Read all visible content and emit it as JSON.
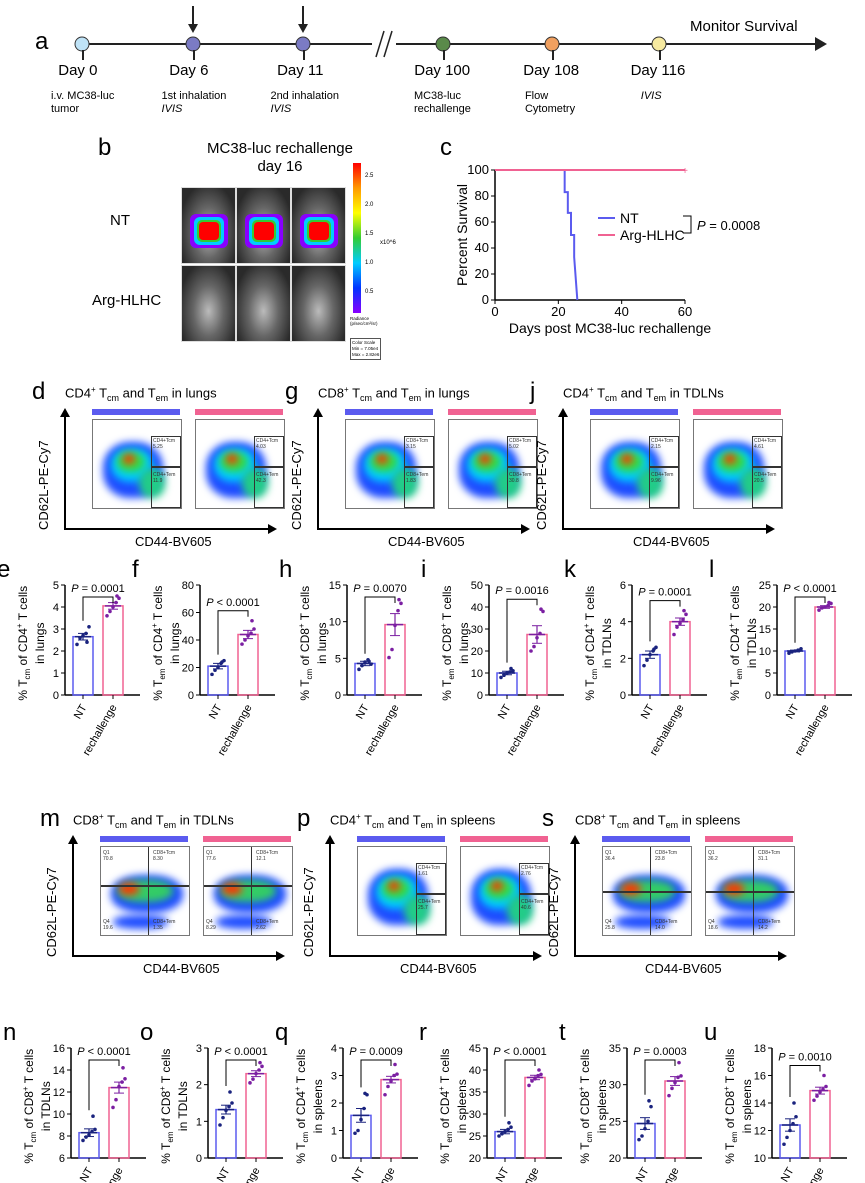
{
  "colors": {
    "nt": "#5b5bef",
    "arg": "#f06292",
    "nt_dot": "#1a237e",
    "arg_dot": "#7b1fa2"
  },
  "panel_letters": {
    "a": "a",
    "b": "b",
    "c": "c",
    "d": "d",
    "e": "e",
    "f": "f",
    "g": "g",
    "h": "h",
    "i": "i",
    "j": "j",
    "k": "k",
    "l": "l",
    "m": "m",
    "n": "n",
    "o": "o",
    "p": "p",
    "q": "q",
    "r": "r",
    "s": "s",
    "t": "t",
    "u": "u"
  },
  "timeline": {
    "end_label": "Monitor Survival",
    "events": [
      {
        "day": "Day 0",
        "desc1": "i.v. MC38-luc",
        "desc2": "tumor",
        "color": "#bfe3f7",
        "arrow": false
      },
      {
        "day": "Day 6",
        "desc1": "1st inhalation",
        "desc2": "IVIS",
        "color": "#7b7bc4",
        "arrow": true
      },
      {
        "day": "Day 11",
        "desc1": "2nd inhalation",
        "desc2": "IVIS",
        "color": "#7b7bc4",
        "arrow": true
      },
      {
        "day": "Day 100",
        "desc1": "MC38-luc",
        "desc2": "rechallenge",
        "color": "#5a8a4a",
        "arrow": false
      },
      {
        "day": "Day 108",
        "desc1": "Flow",
        "desc2": "Cytometry",
        "color": "#f0a060",
        "arrow": false
      },
      {
        "day": "Day 116",
        "desc1": "IVIS",
        "desc2": "",
        "color": "#f7eaa0",
        "arrow": false
      }
    ]
  },
  "ivis": {
    "title1": "MC38-luc rechallenge",
    "title2": "day 16",
    "row_nt": "NT",
    "row_arg": "Arg-HLHC",
    "scale_ticks": [
      "2.5",
      "2.0",
      "1.5",
      "1.0",
      "0.5"
    ],
    "scale_unit": "x10^6",
    "radiance_label": "Radiance (p/sec/cm²/sr)",
    "color_scale": "Color Scale",
    "min": "Min = 7.05e4",
    "max": "Max = 2.82e6"
  },
  "chart_data": [
    {
      "id": "c",
      "type": "line",
      "xlabel": "Days post MC38-luc rechallenge",
      "ylabel": "Percent Survival",
      "xlim": [
        0,
        60
      ],
      "ylim": [
        0,
        100
      ],
      "xticks": [
        0,
        20,
        40,
        60
      ],
      "yticks": [
        0,
        20,
        40,
        60,
        80,
        100
      ],
      "annotation": "P = 0.0008",
      "series": [
        {
          "name": "NT",
          "x": [
            0,
            22,
            22,
            23,
            23,
            24,
            24,
            25,
            25,
            26
          ],
          "y": [
            100,
            100,
            83,
            83,
            67,
            67,
            50,
            50,
            33,
            0
          ]
        },
        {
          "name": "Arg-HLHC",
          "x": [
            0,
            60
          ],
          "y": [
            100,
            100
          ]
        }
      ]
    },
    {
      "id": "e",
      "type": "bar",
      "cell": "CD4",
      "sub": "cm",
      "tissue": "in lungs",
      "p": "P = 0.0001",
      "ylim": [
        0,
        5
      ],
      "yticks": [
        0,
        1,
        2,
        3,
        4,
        5
      ],
      "categories": [
        "NT",
        "rechallenge"
      ],
      "values": [
        2.65,
        4.05
      ],
      "sem": [
        0.15,
        0.15
      ],
      "points": [
        [
          2.3,
          2.6,
          2.7,
          2.8,
          3.1,
          2.4
        ],
        [
          3.6,
          3.8,
          4.0,
          4.2,
          4.4,
          4.5
        ]
      ]
    },
    {
      "id": "f",
      "type": "bar",
      "cell": "CD4",
      "sub": "em",
      "tissue": "in lungs",
      "p": "P < 0.0001",
      "ylim": [
        0,
        80
      ],
      "yticks": [
        0,
        20,
        40,
        60,
        80
      ],
      "categories": [
        "NT",
        "rechallenge"
      ],
      "values": [
        21,
        44
      ],
      "sem": [
        2,
        3
      ],
      "points": [
        [
          15,
          18,
          20,
          23,
          25,
          24
        ],
        [
          37,
          40,
          43,
          45,
          48,
          54
        ]
      ]
    },
    {
      "id": "h",
      "type": "bar",
      "cell": "CD8",
      "sub": "cm",
      "tissue": "in lungs",
      "p": "P = 0.0070",
      "ylim": [
        0,
        15
      ],
      "yticks": [
        0,
        5,
        10,
        15
      ],
      "categories": [
        "NT",
        "rechallenge"
      ],
      "values": [
        4.3,
        9.6
      ],
      "sem": [
        0.3,
        1.5
      ],
      "points": [
        [
          3.5,
          4.0,
          4.5,
          4.8,
          4.2,
          4.6
        ],
        [
          5.1,
          6.2,
          9.5,
          11.5,
          12.5,
          13.0
        ]
      ]
    },
    {
      "id": "i",
      "type": "bar",
      "cell": "CD8",
      "sub": "em",
      "tissue": "in lungs",
      "p": "P = 0.0016",
      "ylim": [
        0,
        50
      ],
      "yticks": [
        0,
        10,
        20,
        30,
        40,
        50
      ],
      "categories": [
        "NT",
        "rechallenge"
      ],
      "values": [
        10,
        27.5
      ],
      "sem": [
        0.8,
        4
      ],
      "points": [
        [
          8,
          9,
          10,
          10.5,
          11,
          12
        ],
        [
          20,
          22,
          26,
          28,
          38,
          39
        ]
      ]
    },
    {
      "id": "k",
      "type": "bar",
      "cell": "CD4",
      "sub": "cm",
      "tissue": "in TDLNs",
      "p": "P = 0.0001",
      "ylim": [
        0,
        6
      ],
      "yticks": [
        0,
        2,
        4,
        6
      ],
      "categories": [
        "NT",
        "rechallenge"
      ],
      "values": [
        2.2,
        4.0
      ],
      "sem": [
        0.2,
        0.2
      ],
      "points": [
        [
          1.6,
          1.9,
          2.2,
          2.4,
          2.6,
          2.5
        ],
        [
          3.3,
          3.7,
          3.9,
          4.1,
          4.4,
          4.6
        ]
      ]
    },
    {
      "id": "l",
      "type": "bar",
      "cell": "CD4",
      "sub": "em",
      "tissue": "in TDLNs",
      "p": "P < 0.0001",
      "ylim": [
        0,
        25
      ],
      "yticks": [
        0,
        5,
        10,
        15,
        20,
        25
      ],
      "categories": [
        "NT",
        "rechallenge"
      ],
      "values": [
        10,
        20
      ],
      "sem": [
        0.2,
        0.3
      ],
      "points": [
        [
          9.5,
          9.8,
          10,
          10.2,
          10.5,
          10.1
        ],
        [
          19.3,
          19.8,
          20,
          20.3,
          20.8,
          21
        ]
      ]
    },
    {
      "id": "n",
      "type": "bar",
      "cell": "CD8",
      "sub": "cm",
      "tissue": "in TDLNs",
      "p": "P < 0.0001",
      "ylim": [
        6,
        16
      ],
      "yticks": [
        6,
        8,
        10,
        12,
        14,
        16
      ],
      "categories": [
        "NT",
        "rechallenge"
      ],
      "values": [
        8.3,
        12.4
      ],
      "sem": [
        0.35,
        0.5
      ],
      "points": [
        [
          7.6,
          7.9,
          8.1,
          8.4,
          8.6,
          9.8
        ],
        [
          10.6,
          11.3,
          12.5,
          12.9,
          13.2,
          14.2
        ]
      ]
    },
    {
      "id": "o",
      "type": "bar",
      "cell": "CD8",
      "sub": "em",
      "tissue": "in TDLNs",
      "p": "P < 0.0001",
      "ylim": [
        0,
        3
      ],
      "yticks": [
        0,
        1,
        2,
        3
      ],
      "categories": [
        "NT",
        "rechallenge"
      ],
      "values": [
        1.32,
        2.3
      ],
      "sem": [
        0.12,
        0.08
      ],
      "points": [
        [
          0.9,
          1.1,
          1.3,
          1.4,
          1.5,
          1.8
        ],
        [
          2.05,
          2.15,
          2.3,
          2.4,
          2.5,
          2.6
        ]
      ]
    },
    {
      "id": "q",
      "type": "bar",
      "cell": "CD4",
      "sub": "cm",
      "tissue": "in spleens",
      "p": "P = 0.0009",
      "ylim": [
        0,
        4
      ],
      "yticks": [
        0,
        1,
        2,
        3,
        4
      ],
      "categories": [
        "NT",
        "rechallenge"
      ],
      "values": [
        1.55,
        2.85
      ],
      "sem": [
        0.25,
        0.12
      ],
      "points": [
        [
          0.9,
          1.0,
          1.4,
          1.8,
          2.3,
          2.35
        ],
        [
          2.3,
          2.6,
          2.8,
          3.0,
          3.05,
          3.4
        ]
      ]
    },
    {
      "id": "r",
      "type": "bar",
      "cell": "CD4",
      "sub": "em",
      "tissue": "in spleens",
      "p": "P < 0.0001",
      "ylim": [
        20,
        45
      ],
      "yticks": [
        20,
        25,
        30,
        35,
        40,
        45
      ],
      "categories": [
        "NT",
        "rechallenge"
      ],
      "values": [
        26,
        38.3
      ],
      "sem": [
        0.5,
        0.5
      ],
      "points": [
        [
          25,
          25.5,
          26,
          26.5,
          27,
          28
        ],
        [
          36.5,
          37.5,
          38,
          38.7,
          39,
          40
        ]
      ]
    },
    {
      "id": "t",
      "type": "bar",
      "cell": "CD8",
      "sub": "cm",
      "tissue": "in spleens",
      "p": "P = 0.0003",
      "ylim": [
        20,
        35
      ],
      "yticks": [
        20,
        25,
        30,
        35
      ],
      "categories": [
        "NT",
        "rechallenge"
      ],
      "values": [
        24.7,
        30.5
      ],
      "sem": [
        0.8,
        0.6
      ],
      "points": [
        [
          22.5,
          23,
          24,
          25,
          27,
          27.8
        ],
        [
          28.5,
          29.5,
          30.3,
          31,
          31.2,
          33
        ]
      ]
    },
    {
      "id": "u",
      "type": "bar",
      "cell": "CD8",
      "sub": "em",
      "tissue": "in spleens",
      "p": "P = 0.0010",
      "ylim": [
        10,
        18
      ],
      "yticks": [
        10,
        12,
        14,
        16,
        18
      ],
      "categories": [
        "NT",
        "rechallenge"
      ],
      "values": [
        12.4,
        14.9
      ],
      "sem": [
        0.45,
        0.25
      ],
      "points": [
        [
          11,
          11.5,
          12,
          12.5,
          13,
          14
        ],
        [
          14.2,
          14.5,
          14.8,
          15,
          15.2,
          16
        ]
      ]
    }
  ],
  "flow": {
    "xlabel": "CD44-BV605",
    "ylabel": "CD62L-PE-Cy7",
    "panels": [
      {
        "id": "d",
        "cell": "CD4",
        "tissue": "in lungs",
        "style": "rect",
        "plots": [
          {
            "tcm_label": "CD4+Tcm",
            "tcm": "5.25",
            "tem_label": "CD4+Tem",
            "tem": "11.9"
          },
          {
            "tcm_label": "CD4+Tcm",
            "tcm": "4.03",
            "tem_label": "CD4+Tem",
            "tem": "42.3"
          }
        ]
      },
      {
        "id": "g",
        "cell": "CD8",
        "tissue": "in lungs",
        "style": "rect",
        "plots": [
          {
            "tcm_label": "CD8+Tcm",
            "tcm": "3.15",
            "tem_label": "CD8+Tem",
            "tem": "1.83"
          },
          {
            "tcm_label": "CD8+Tcm",
            "tcm": "5.02",
            "tem_label": "CD8+Tem",
            "tem": "30.8"
          }
        ]
      },
      {
        "id": "j",
        "cell": "CD4",
        "tissue": "in TDLNs",
        "style": "rect",
        "plots": [
          {
            "tcm_label": "CD4+Tcm",
            "tcm": "2.15",
            "tem_label": "CD4+Tem",
            "tem": "9.96"
          },
          {
            "tcm_label": "CD4+Tcm",
            "tcm": "4.61",
            "tem_label": "CD4+Tem",
            "tem": "20.5"
          }
        ]
      },
      {
        "id": "m",
        "cell": "CD8",
        "tissue": "in TDLNs",
        "style": "quad",
        "plots": [
          {
            "q1_label": "Q1",
            "q1": "70.8",
            "tcm_label": "CD8+Tcm",
            "tcm": "8.30",
            "q4_label": "Q4",
            "q4": "19.6",
            "tem_label": "CD8+Tem",
            "tem": "1.35"
          },
          {
            "q1_label": "Q1",
            "q1": "77.6",
            "tcm_label": "CD8+Tcm",
            "tcm": "12.1",
            "q4_label": "Q4",
            "q4": "8.29",
            "tem_label": "CD8+Tem",
            "tem": "2.62"
          }
        ]
      },
      {
        "id": "p",
        "cell": "CD4",
        "tissue": "in spleens",
        "style": "rect",
        "plots": [
          {
            "tcm_label": "CD4+Tcm",
            "tcm": "1.61",
            "tem_label": "CD4+Tem",
            "tem": "25.7"
          },
          {
            "tcm_label": "CD4+Tcm",
            "tcm": "2.76",
            "tem_label": "CD4+Tem",
            "tem": "40.6"
          }
        ]
      },
      {
        "id": "s",
        "cell": "CD8",
        "tissue": "in spleens",
        "style": "quad",
        "plots": [
          {
            "q1_label": "Q1",
            "q1": "36.4",
            "tcm_label": "CD8+Tcm",
            "tcm": "23.8",
            "q4_label": "Q4",
            "q4": "25.8",
            "tem_label": "CD8+Tem",
            "tem": "14.0"
          },
          {
            "q1_label": "Q1",
            "q1": "36.2",
            "tcm_label": "CD8+Tcm",
            "tcm": "31.1",
            "q4_label": "Q4",
            "q4": "18.6",
            "tem_label": "CD8+Tem",
            "tem": "14.2"
          }
        ]
      }
    ]
  }
}
